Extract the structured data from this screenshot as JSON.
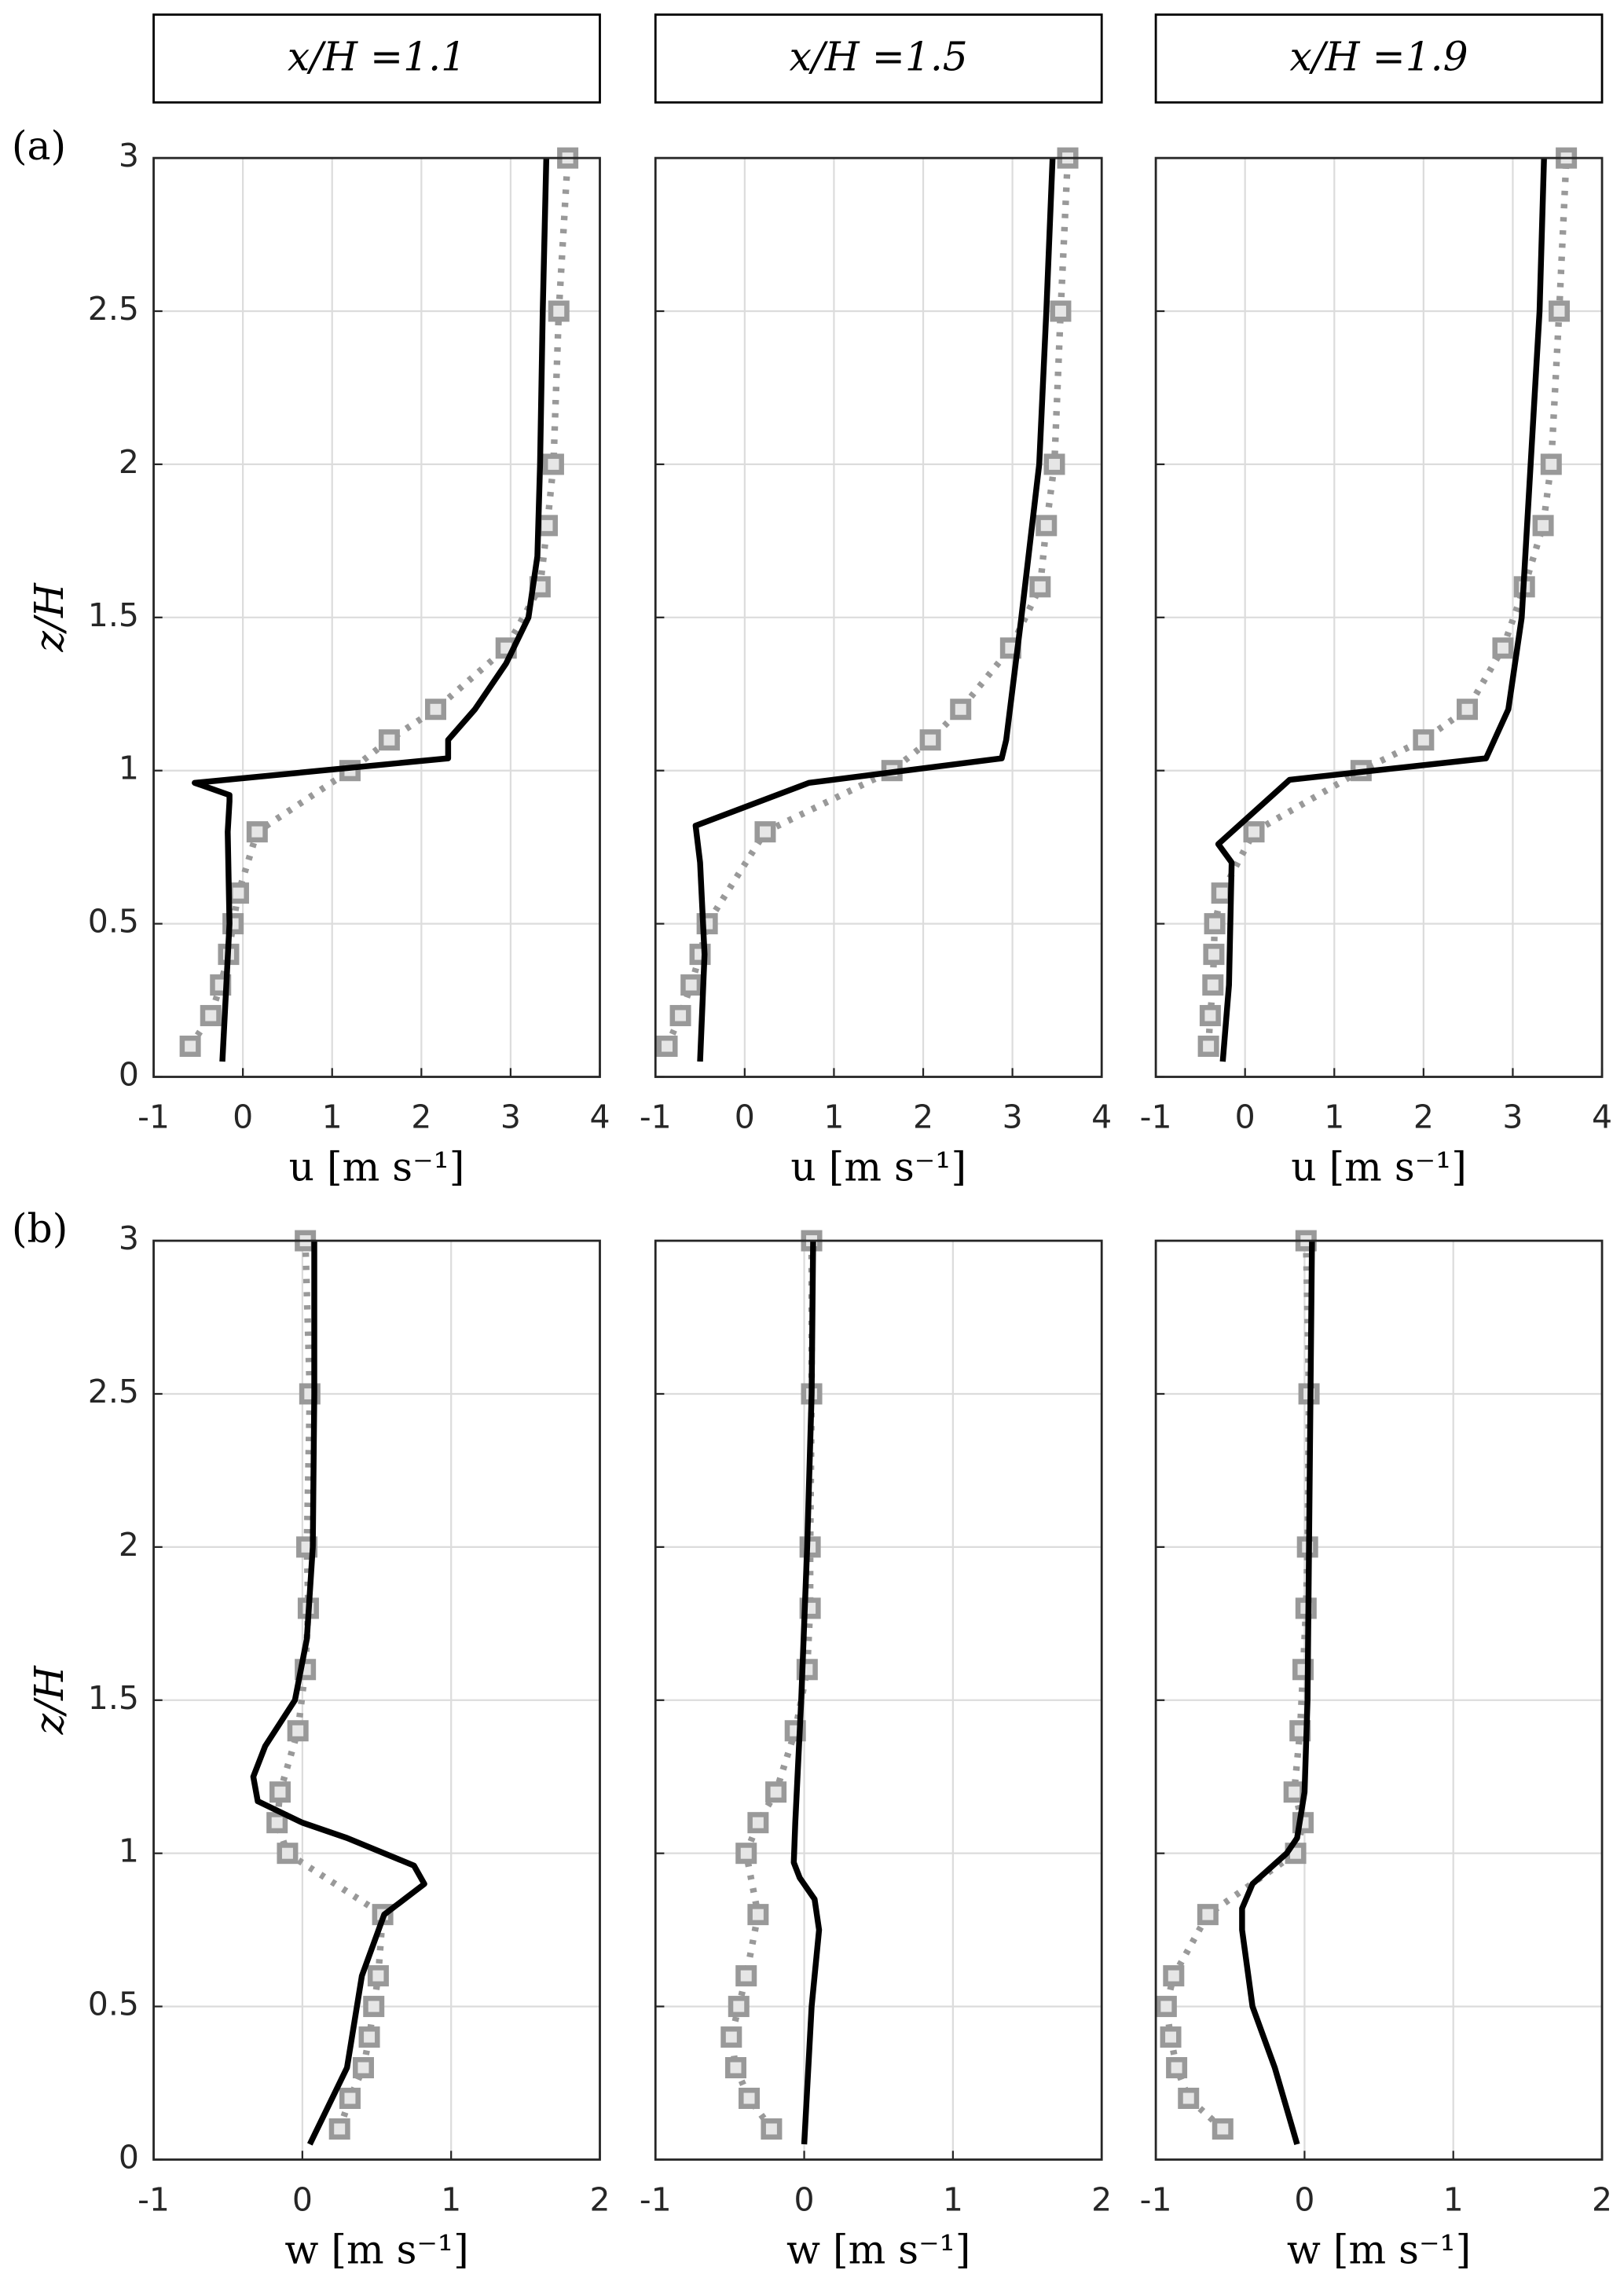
{
  "chart_data": [
    {
      "type": "line",
      "panel_label": "(a)",
      "title": "x/H =1.1",
      "xlabel": "u [m s⁻¹]",
      "ylabel": "z/H",
      "show_ytick_labels": true,
      "xlim": [
        -1,
        4
      ],
      "xticks": [
        -1,
        0,
        1,
        2,
        3,
        4
      ],
      "ylim": [
        0,
        3
      ],
      "yticks": [
        0,
        0.5,
        1,
        1.5,
        2,
        2.5,
        3
      ],
      "grid": true,
      "series": [
        {
          "color": "#999999",
          "linestyle": "dotted",
          "marker": "square",
          "x": [
            -0.59,
            -0.36,
            -0.25,
            -0.16,
            -0.11,
            -0.05,
            0.16,
            1.2,
            1.64,
            2.16,
            2.95,
            3.33,
            3.41,
            3.48,
            3.54,
            3.64
          ],
          "y": [
            0.1,
            0.2,
            0.3,
            0.4,
            0.5,
            0.6,
            0.8,
            1.0,
            1.1,
            1.2,
            1.4,
            1.6,
            1.8,
            2.0,
            2.5,
            3.0
          ]
        },
        {
          "color": "#000000",
          "linestyle": "solid",
          "marker": "none",
          "x": [
            -0.23,
            -0.15,
            -0.17,
            -0.15,
            -0.15,
            -0.54,
            2.3,
            2.3,
            2.6,
            2.95,
            3.2,
            3.3,
            3.33,
            3.36,
            3.4
          ],
          "y": [
            0.05,
            0.5,
            0.8,
            0.9,
            0.92,
            0.96,
            1.04,
            1.1,
            1.2,
            1.35,
            1.5,
            1.7,
            2.0,
            2.5,
            3.0
          ]
        }
      ]
    },
    {
      "type": "line",
      "title": "x/H =1.5",
      "xlabel": "u [m s⁻¹]",
      "show_ytick_labels": false,
      "xlim": [
        -1,
        4
      ],
      "xticks": [
        -1,
        0,
        1,
        2,
        3,
        4
      ],
      "ylim": [
        0,
        3
      ],
      "yticks": [
        0,
        0.5,
        1,
        1.5,
        2,
        2.5,
        3
      ],
      "grid": true,
      "series": [
        {
          "color": "#999999",
          "linestyle": "dotted",
          "marker": "square",
          "x": [
            -0.87,
            -0.72,
            -0.6,
            -0.5,
            -0.42,
            0.23,
            1.65,
            2.08,
            2.42,
            2.98,
            3.31,
            3.38,
            3.47,
            3.54,
            3.62
          ],
          "y": [
            0.1,
            0.2,
            0.3,
            0.4,
            0.5,
            0.8,
            1.0,
            1.1,
            1.2,
            1.4,
            1.6,
            1.8,
            2.0,
            2.5,
            3.0
          ]
        },
        {
          "color": "#000000",
          "linestyle": "solid",
          "marker": "none",
          "x": [
            -0.5,
            -0.45,
            -0.5,
            -0.55,
            0.72,
            2.88,
            2.93,
            3.1,
            3.3,
            3.38,
            3.45
          ],
          "y": [
            0.05,
            0.4,
            0.7,
            0.82,
            0.96,
            1.04,
            1.1,
            1.5,
            2.0,
            2.5,
            3.0
          ]
        }
      ]
    },
    {
      "type": "line",
      "title": "x/H =1.9",
      "xlabel": "u [m s⁻¹]",
      "show_ytick_labels": false,
      "xlim": [
        -1,
        4
      ],
      "xticks": [
        -1,
        0,
        1,
        2,
        3,
        4
      ],
      "ylim": [
        0,
        3
      ],
      "yticks": [
        0,
        0.5,
        1,
        1.5,
        2,
        2.5,
        3
      ],
      "grid": true,
      "series": [
        {
          "color": "#999999",
          "linestyle": "dotted",
          "marker": "square",
          "x": [
            -0.41,
            -0.39,
            -0.36,
            -0.35,
            -0.34,
            -0.26,
            0.1,
            1.3,
            2.0,
            2.49,
            2.89,
            3.13,
            3.34,
            3.43,
            3.52,
            3.6
          ],
          "y": [
            0.1,
            0.2,
            0.3,
            0.4,
            0.5,
            0.6,
            0.8,
            1.0,
            1.1,
            1.2,
            1.4,
            1.6,
            1.8,
            2.0,
            2.5,
            3.0
          ]
        },
        {
          "color": "#000000",
          "linestyle": "solid",
          "marker": "none",
          "x": [
            -0.25,
            -0.18,
            -0.15,
            -0.3,
            0.5,
            2.7,
            2.95,
            3.1,
            3.2,
            3.3,
            3.35
          ],
          "y": [
            0.05,
            0.3,
            0.7,
            0.76,
            0.97,
            1.04,
            1.2,
            1.5,
            2.0,
            2.5,
            3.0
          ]
        }
      ]
    },
    {
      "type": "line",
      "panel_label": "(b)",
      "xlabel": "w [m s⁻¹]",
      "ylabel": "z/H",
      "show_ytick_labels": true,
      "xlim": [
        -1,
        2
      ],
      "xticks": [
        -1,
        0,
        1,
        2
      ],
      "ylim": [
        0,
        3
      ],
      "yticks": [
        0,
        0.5,
        1,
        1.5,
        2,
        2.5,
        3
      ],
      "grid": true,
      "series": [
        {
          "color": "#999999",
          "linestyle": "dotted",
          "marker": "square",
          "x": [
            0.25,
            0.32,
            0.41,
            0.45,
            0.48,
            0.51,
            0.54,
            -0.1,
            -0.17,
            -0.15,
            -0.03,
            0.02,
            0.04,
            0.03,
            0.05,
            0.02
          ],
          "y": [
            0.1,
            0.2,
            0.3,
            0.4,
            0.5,
            0.6,
            0.8,
            1.0,
            1.1,
            1.2,
            1.4,
            1.6,
            1.8,
            2.0,
            2.5,
            3.0
          ]
        },
        {
          "color": "#000000",
          "linestyle": "solid",
          "marker": "none",
          "x": [
            0.05,
            0.3,
            0.4,
            0.55,
            0.82,
            0.75,
            0.3,
            0.0,
            -0.3,
            -0.33,
            -0.25,
            -0.05,
            0.03,
            0.07,
            0.08,
            0.08
          ],
          "y": [
            0.05,
            0.3,
            0.6,
            0.8,
            0.9,
            0.96,
            1.05,
            1.1,
            1.17,
            1.25,
            1.35,
            1.5,
            1.7,
            2.0,
            2.5,
            3.0
          ]
        }
      ]
    },
    {
      "type": "line",
      "xlabel": "w [m s⁻¹]",
      "show_ytick_labels": false,
      "xlim": [
        -1,
        2
      ],
      "xticks": [
        -1,
        0,
        1,
        2
      ],
      "ylim": [
        0,
        3
      ],
      "yticks": [
        0,
        0.5,
        1,
        1.5,
        2,
        2.5,
        3
      ],
      "grid": true,
      "series": [
        {
          "color": "#999999",
          "linestyle": "dotted",
          "marker": "square",
          "x": [
            -0.22,
            -0.37,
            -0.46,
            -0.49,
            -0.44,
            -0.39,
            -0.31,
            -0.39,
            -0.31,
            -0.19,
            -0.06,
            0.02,
            0.04,
            0.04,
            0.05,
            0.05
          ],
          "y": [
            0.1,
            0.2,
            0.3,
            0.4,
            0.5,
            0.6,
            0.8,
            1.0,
            1.1,
            1.2,
            1.4,
            1.6,
            1.8,
            2.0,
            2.5,
            3.0
          ]
        },
        {
          "color": "#000000",
          "linestyle": "solid",
          "marker": "none",
          "x": [
            0.0,
            0.05,
            0.1,
            0.07,
            -0.03,
            -0.07,
            -0.06,
            -0.02,
            0.02,
            0.05,
            0.06
          ],
          "y": [
            0.05,
            0.5,
            0.75,
            0.85,
            0.92,
            0.97,
            1.1,
            1.5,
            2.0,
            2.5,
            3.0
          ]
        }
      ]
    },
    {
      "type": "line",
      "xlabel": "w [m s⁻¹]",
      "show_ytick_labels": false,
      "xlim": [
        -1,
        2
      ],
      "xticks": [
        -1,
        0,
        1,
        2
      ],
      "ylim": [
        0,
        3
      ],
      "yticks": [
        0,
        0.5,
        1,
        1.5,
        2,
        2.5,
        3
      ],
      "grid": true,
      "series": [
        {
          "color": "#999999",
          "linestyle": "dotted",
          "marker": "square",
          "x": [
            -0.55,
            -0.78,
            -0.86,
            -0.9,
            -0.93,
            -0.88,
            -0.65,
            -0.06,
            -0.01,
            -0.07,
            -0.03,
            -0.01,
            0.01,
            0.02,
            0.03,
            0.01
          ],
          "y": [
            0.1,
            0.2,
            0.3,
            0.4,
            0.5,
            0.6,
            0.8,
            1.0,
            1.1,
            1.2,
            1.4,
            1.6,
            1.8,
            2.0,
            2.5,
            3.0
          ]
        },
        {
          "color": "#000000",
          "linestyle": "solid",
          "marker": "none",
          "x": [
            -0.05,
            -0.2,
            -0.35,
            -0.42,
            -0.42,
            -0.35,
            -0.12,
            -0.05,
            0.0,
            0.02,
            0.03,
            0.05
          ],
          "y": [
            0.05,
            0.3,
            0.5,
            0.75,
            0.82,
            0.9,
            1.0,
            1.05,
            1.2,
            1.5,
            2.0,
            3.0
          ]
        }
      ]
    }
  ]
}
